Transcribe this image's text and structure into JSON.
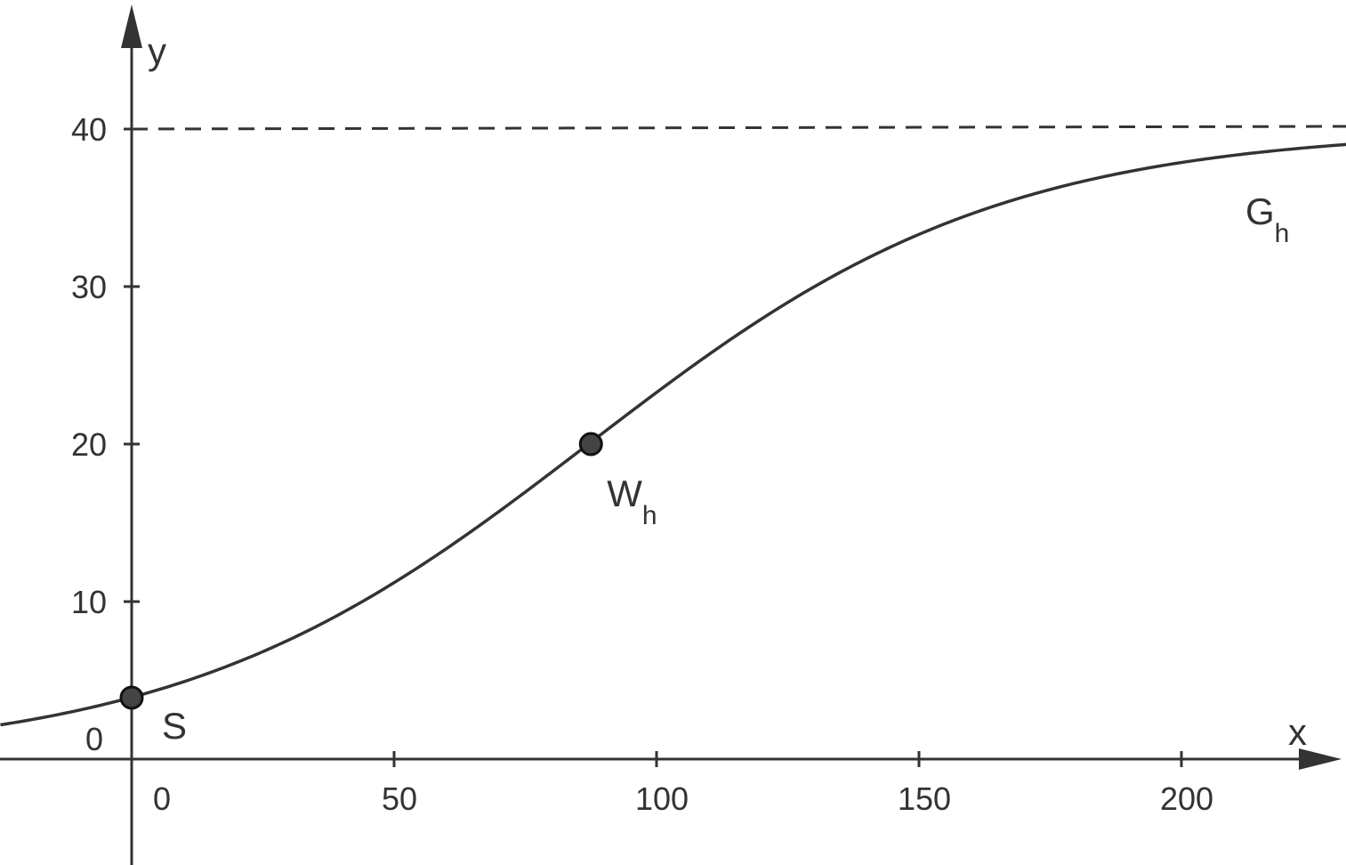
{
  "chart_data": {
    "type": "line",
    "title": "",
    "xlabel": "x",
    "ylabel": "y",
    "xlim": [
      -25,
      232
    ],
    "ylim": [
      -6.6,
      47.3
    ],
    "x_ticks": [
      0,
      50,
      100,
      150,
      200
    ],
    "x_tick_labels": [
      "0",
      "50",
      "100",
      "150",
      "200"
    ],
    "y_ticks": [
      10,
      20,
      30,
      40
    ],
    "y_tick_labels": [
      "10",
      "20",
      "30",
      "40"
    ],
    "origin_label": "0",
    "grid": false,
    "legend": "none",
    "asymptote": {
      "y": 40,
      "style": "dashed"
    },
    "series": [
      {
        "name": "G",
        "name_sub": "h",
        "function": "40 / (1 + 9.2 * e^(-0.0255 * x))",
        "x_range": [
          -25,
          232
        ],
        "k": 40,
        "a": 9.2,
        "b": 0.0255
      }
    ],
    "points": [
      {
        "name": "S",
        "sub": "",
        "x": 0,
        "y": 3.9
      },
      {
        "name": "W",
        "sub": "h",
        "x": 87.5,
        "y": 20
      }
    ],
    "colors": {
      "curve": "#333333",
      "axis": "#333333",
      "point_fill": "#444444"
    }
  }
}
